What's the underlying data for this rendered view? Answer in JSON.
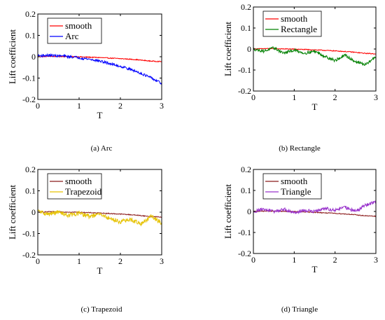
{
  "figure": {
    "panels": [
      {
        "id": "a",
        "caption": "(a)   Arc"
      },
      {
        "id": "b",
        "caption": "(b)   Rectangle"
      },
      {
        "id": "c",
        "caption": "(c)   Trapezoid"
      },
      {
        "id": "d",
        "caption": "(d)   Triangle"
      }
    ]
  },
  "chart_data": [
    {
      "type": "line",
      "title": "",
      "xlabel": "T",
      "ylabel": "Lift coefficient",
      "xlim": [
        0,
        3
      ],
      "ylim": [
        -0.2,
        0.2
      ],
      "xticks": [
        "0",
        "1",
        "2",
        "3"
      ],
      "yticks": [
        "0.2",
        "0.1",
        "0",
        "-0.1",
        "-0.2"
      ],
      "grid": false,
      "legend": "top-left",
      "series": [
        {
          "name": "smooth",
          "color": "#ff0000",
          "x": [
            0,
            0.3,
            0.6,
            0.9,
            1.2,
            1.5,
            1.8,
            2.1,
            2.4,
            2.7,
            3.0
          ],
          "y": [
            0,
            0.002,
            0.001,
            0,
            -0.002,
            -0.004,
            -0.007,
            -0.01,
            -0.014,
            -0.02,
            -0.023
          ],
          "noise": 0.002
        },
        {
          "name": "Arc",
          "color": "#0000ff",
          "x": [
            0,
            0.3,
            0.6,
            0.9,
            1.2,
            1.5,
            1.8,
            2.1,
            2.4,
            2.7,
            3.0
          ],
          "y": [
            0.005,
            0.006,
            0.003,
            -0.002,
            -0.01,
            -0.02,
            -0.035,
            -0.05,
            -0.07,
            -0.095,
            -0.125
          ],
          "noise": 0.006
        }
      ]
    },
    {
      "type": "line",
      "title": "",
      "xlabel": "T",
      "ylabel": "Lift coefficient",
      "xlim": [
        0,
        3
      ],
      "ylim": [
        -0.2,
        0.2
      ],
      "xticks": [
        "0",
        "1",
        "2",
        "3"
      ],
      "yticks": [
        "0.2",
        "0.1",
        "0",
        "-0.1",
        "-0.2"
      ],
      "grid": false,
      "legend": "top-left",
      "series": [
        {
          "name": "smooth",
          "color": "#ff0000",
          "x": [
            0,
            0.3,
            0.6,
            0.9,
            1.2,
            1.5,
            1.8,
            2.1,
            2.4,
            2.7,
            3.0
          ],
          "y": [
            0,
            0.002,
            0.001,
            0,
            -0.002,
            -0.004,
            -0.007,
            -0.01,
            -0.014,
            -0.02,
            -0.023
          ],
          "noise": 0.002
        },
        {
          "name": "Rectangle",
          "color": "#008000",
          "x": [
            0,
            0.25,
            0.5,
            0.75,
            1.0,
            1.25,
            1.5,
            1.75,
            2.0,
            2.25,
            2.5,
            2.75,
            3.0
          ],
          "y": [
            0,
            -0.01,
            0.005,
            -0.02,
            -0.005,
            -0.02,
            -0.01,
            -0.035,
            -0.055,
            -0.03,
            -0.06,
            -0.075,
            -0.035
          ],
          "noise": 0.007
        }
      ]
    },
    {
      "type": "line",
      "title": "",
      "xlabel": "T",
      "ylabel": "Lift coefficient",
      "xlim": [
        0,
        3
      ],
      "ylim": [
        -0.2,
        0.2
      ],
      "xticks": [
        "0",
        "1",
        "2",
        "3"
      ],
      "yticks": [
        "0.2",
        "0.1",
        "0",
        "-0.1",
        "-0.2"
      ],
      "grid": false,
      "legend": "top-left",
      "series": [
        {
          "name": "smooth",
          "color": "#8b1a1a",
          "x": [
            0,
            0.3,
            0.6,
            0.9,
            1.2,
            1.5,
            1.8,
            2.1,
            2.4,
            2.7,
            3.0
          ],
          "y": [
            0,
            0.002,
            0.001,
            0,
            -0.002,
            -0.004,
            -0.007,
            -0.01,
            -0.014,
            -0.02,
            -0.023
          ],
          "noise": 0.002
        },
        {
          "name": "Trapezoid",
          "color": "#e6c200",
          "x": [
            0,
            0.25,
            0.5,
            0.75,
            1.0,
            1.25,
            1.5,
            1.75,
            2.0,
            2.25,
            2.5,
            2.75,
            3.0
          ],
          "y": [
            0.005,
            -0.01,
            0.0,
            -0.015,
            -0.005,
            -0.02,
            -0.01,
            -0.03,
            -0.045,
            -0.035,
            -0.055,
            -0.02,
            -0.05
          ],
          "noise": 0.01
        }
      ]
    },
    {
      "type": "line",
      "title": "",
      "xlabel": "T",
      "ylabel": "Lift coefficient",
      "xlim": [
        0,
        3
      ],
      "ylim": [
        -0.2,
        0.2
      ],
      "xticks": [
        "0",
        "1",
        "2",
        "3"
      ],
      "yticks": [
        "0.2",
        "0.1",
        "0",
        "-0.1",
        "-0.2"
      ],
      "grid": false,
      "legend": "top-left",
      "series": [
        {
          "name": "smooth",
          "color": "#8b1a1a",
          "x": [
            0,
            0.3,
            0.6,
            0.9,
            1.2,
            1.5,
            1.8,
            2.1,
            2.4,
            2.7,
            3.0
          ],
          "y": [
            0,
            0.002,
            0.001,
            0,
            -0.002,
            -0.004,
            -0.007,
            -0.01,
            -0.014,
            -0.02,
            -0.023
          ],
          "noise": 0.002
        },
        {
          "name": "Triangle",
          "color": "#9933cc",
          "x": [
            0,
            0.25,
            0.5,
            0.75,
            1.0,
            1.25,
            1.5,
            1.75,
            2.0,
            2.25,
            2.5,
            2.75,
            3.0
          ],
          "y": [
            0.0,
            0.01,
            0.0,
            0.01,
            -0.005,
            0.005,
            0.0,
            0.015,
            0.005,
            0.02,
            0.0,
            0.03,
            0.045
          ],
          "noise": 0.008
        }
      ]
    }
  ]
}
